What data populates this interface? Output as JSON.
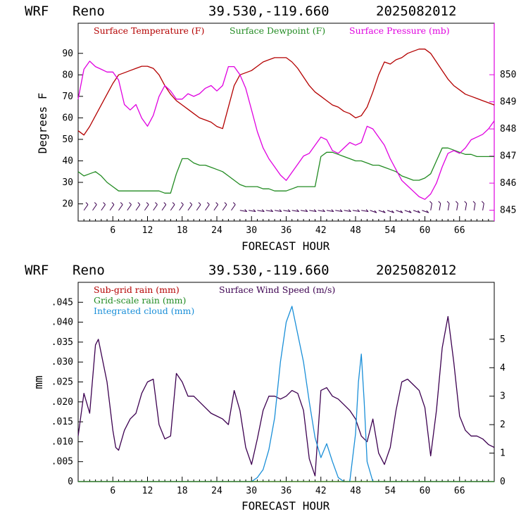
{
  "colors": {
    "temperature": "#b40000",
    "dewpoint": "#228b22",
    "pressure": "#e000e0",
    "wind_barbs": "#3c0050",
    "wind_speed": "#3c0050",
    "subgrid_rain": "#b40000",
    "gridscale_rain": "#228b22",
    "cloud": "#1a8fd8",
    "axis": "#000000"
  },
  "panels": [
    {
      "header": {
        "model": "WRF",
        "station": "Reno",
        "coords": "39.530,-119.660",
        "run": "2025082012"
      },
      "xlabel": "FORECAST HOUR",
      "ylabel_left": "Degrees F",
      "legend": [
        {
          "label": "Surface Temperature (F)",
          "color": "#b40000"
        },
        {
          "label": "Surface Dewpoint (F)",
          "color": "#228b22"
        },
        {
          "label": "Surface Pressure (mb)",
          "color": "#e000e0"
        }
      ],
      "wind_barbs_label": "wind barbs"
    },
    {
      "header": {
        "model": "WRF",
        "station": "Reno",
        "coords": "39.530,-119.660",
        "run": "2025082012"
      },
      "xlabel": "FORECAST HOUR",
      "ylabel_left": "mm",
      "legend": [
        {
          "label": "Sub-grid rain (mm)",
          "color": "#b40000"
        },
        {
          "label": "Surface Wind Speed (m/s)",
          "color": "#3c0050"
        },
        {
          "label": "Grid-scale rain (mm)",
          "color": "#228b22"
        },
        {
          "label": "Integrated cloud (mm)",
          "color": "#1a8fd8"
        }
      ]
    }
  ],
  "chart_data": [
    {
      "type": "line",
      "title": "WRF Reno 39.530,-119.660 2025082012",
      "xlabel": "FORECAST HOUR",
      "ylabel": "Degrees F",
      "xlim": [
        0,
        72
      ],
      "ylim": [
        12,
        104
      ],
      "y2lim": [
        844.6,
        851.9
      ],
      "x_ticks": [
        6,
        12,
        18,
        24,
        30,
        36,
        42,
        48,
        54,
        60,
        66
      ],
      "y_ticks": [
        20,
        30,
        40,
        50,
        60,
        70,
        80,
        90
      ],
      "y2_ticks": [
        845,
        846,
        847,
        848,
        849,
        850
      ],
      "legend_position": "top",
      "series": [
        {
          "name": "Surface Temperature (F)",
          "axis": "left",
          "x": [
            0,
            1,
            2,
            3,
            4,
            5,
            6,
            7,
            8,
            9,
            10,
            11,
            12,
            13,
            14,
            15,
            16,
            17,
            18,
            19,
            20,
            21,
            22,
            23,
            24,
            25,
            26,
            27,
            28,
            29,
            30,
            31,
            32,
            33,
            34,
            35,
            36,
            37,
            38,
            39,
            40,
            41,
            42,
            43,
            44,
            45,
            46,
            47,
            48,
            49,
            50,
            51,
            52,
            53,
            54,
            55,
            56,
            57,
            58,
            59,
            60,
            61,
            62,
            63,
            64,
            65,
            66,
            67,
            68,
            69,
            70,
            71,
            72
          ],
          "values": [
            54,
            52,
            56,
            61,
            66,
            71,
            76,
            80,
            81,
            82,
            83,
            84,
            84,
            83,
            80,
            75,
            71,
            68,
            66,
            64,
            62,
            60,
            59,
            58,
            56,
            55,
            65,
            75,
            80,
            81,
            82,
            84,
            86,
            87,
            88,
            88,
            88,
            86,
            83,
            79,
            75,
            72,
            70,
            68,
            66,
            65,
            63,
            62,
            60,
            61,
            65,
            72,
            80,
            86,
            85,
            87,
            88,
            90,
            91,
            92,
            92,
            90,
            86,
            82,
            78,
            75,
            73,
            71,
            70,
            69,
            68,
            67,
            66
          ]
        },
        {
          "name": "Surface Dewpoint (F)",
          "axis": "left",
          "x": [
            0,
            1,
            2,
            3,
            4,
            5,
            6,
            7,
            8,
            9,
            10,
            11,
            12,
            13,
            14,
            15,
            16,
            17,
            18,
            19,
            20,
            21,
            22,
            23,
            24,
            25,
            26,
            27,
            28,
            29,
            30,
            31,
            32,
            33,
            34,
            35,
            36,
            37,
            38,
            39,
            40,
            41,
            42,
            43,
            44,
            45,
            46,
            47,
            48,
            49,
            50,
            51,
            52,
            53,
            54,
            55,
            56,
            57,
            58,
            59,
            60,
            61,
            62,
            63,
            64,
            65,
            66,
            67,
            68,
            69,
            70,
            71,
            72
          ],
          "values": [
            35,
            33,
            34,
            35,
            33,
            30,
            28,
            26,
            26,
            26,
            26,
            26,
            26,
            26,
            26,
            25,
            25,
            34,
            41,
            41,
            39,
            38,
            38,
            37,
            36,
            35,
            33,
            31,
            29,
            28,
            28,
            28,
            27,
            27,
            26,
            26,
            26,
            27,
            28,
            28,
            28,
            28,
            42,
            44,
            44,
            43,
            42,
            41,
            40,
            40,
            39,
            38,
            38,
            37,
            36,
            35,
            33,
            32,
            31,
            31,
            32,
            34,
            40,
            46,
            46,
            45,
            44,
            43,
            43,
            42,
            42,
            42,
            42
          ]
        },
        {
          "name": "Surface Pressure (mb)",
          "axis": "right",
          "x": [
            0,
            1,
            2,
            3,
            4,
            5,
            6,
            7,
            8,
            9,
            10,
            11,
            12,
            13,
            14,
            15,
            16,
            17,
            18,
            19,
            20,
            21,
            22,
            23,
            24,
            25,
            26,
            27,
            28,
            29,
            30,
            31,
            32,
            33,
            34,
            35,
            36,
            37,
            38,
            39,
            40,
            41,
            42,
            43,
            44,
            45,
            46,
            47,
            48,
            49,
            50,
            51,
            52,
            53,
            54,
            55,
            56,
            57,
            58,
            59,
            60,
            61,
            62,
            63,
            64,
            65,
            66,
            67,
            68,
            69,
            70,
            71,
            72
          ],
          "values": [
            849.1,
            850.2,
            850.5,
            850.3,
            850.2,
            850.1,
            850.1,
            849.8,
            848.9,
            848.7,
            848.9,
            848.4,
            848.1,
            848.5,
            849.2,
            849.6,
            849.4,
            849.1,
            849.1,
            849.3,
            849.2,
            849.3,
            849.5,
            849.6,
            849.4,
            849.6,
            850.3,
            850.3,
            850.0,
            849.5,
            848.7,
            847.9,
            847.3,
            846.9,
            846.6,
            846.3,
            846.1,
            846.4,
            846.7,
            847.0,
            847.1,
            847.4,
            847.7,
            847.6,
            847.2,
            847.1,
            847.3,
            847.5,
            847.4,
            847.5,
            848.1,
            848.0,
            847.7,
            847.4,
            846.9,
            846.5,
            846.1,
            845.9,
            845.7,
            845.5,
            845.4,
            845.6,
            846.0,
            846.6,
            847.1,
            847.2,
            847.1,
            847.3,
            847.6,
            847.7,
            847.8,
            848.0,
            848.3
          ]
        }
      ]
    },
    {
      "type": "line",
      "title": "WRF Reno 39.530,-119.660 2025082012",
      "xlabel": "FORECAST HOUR",
      "ylabel": "mm",
      "xlim": [
        0,
        72
      ],
      "ylim": [
        0,
        0.05
      ],
      "y2lim": [
        0,
        7.0
      ],
      "x_ticks": [
        6,
        12,
        18,
        24,
        30,
        36,
        42,
        48,
        54,
        60,
        66
      ],
      "y_ticks": [
        "0",
        ".005",
        ".010",
        ".015",
        ".020",
        ".025",
        ".030",
        ".035",
        ".040",
        ".045"
      ],
      "y2_ticks": [
        0,
        1,
        2,
        3,
        4,
        5
      ],
      "legend_position": "top-left",
      "series": [
        {
          "name": "Surface Wind Speed (m/s)",
          "axis": "right",
          "x": [
            0,
            1,
            2,
            3,
            3.5,
            4,
            5,
            6,
            6.5,
            7,
            8,
            9,
            10,
            11,
            12,
            13,
            14,
            15,
            16,
            17,
            18,
            19,
            20,
            21,
            22,
            23,
            24,
            25,
            26,
            27,
            28,
            29,
            30,
            31,
            32,
            33,
            34,
            35,
            36,
            37,
            38,
            39,
            40,
            41,
            42,
            43,
            44,
            45,
            46,
            47,
            48,
            49,
            50,
            51,
            52,
            53,
            54,
            55,
            56,
            57,
            58,
            59,
            60,
            61,
            62,
            63,
            64,
            65,
            66,
            67,
            68,
            69,
            70,
            71,
            72
          ],
          "values": [
            1.6,
            3.1,
            2.4,
            4.8,
            5.0,
            4.5,
            3.5,
            1.8,
            1.2,
            1.1,
            1.8,
            2.2,
            2.4,
            3.1,
            3.5,
            3.6,
            2.0,
            1.5,
            1.6,
            3.8,
            3.5,
            3.0,
            3.0,
            2.8,
            2.6,
            2.4,
            2.3,
            2.2,
            2.0,
            3.2,
            2.5,
            1.2,
            0.6,
            1.5,
            2.5,
            3.0,
            3.0,
            2.9,
            3.0,
            3.2,
            3.1,
            2.5,
            0.8,
            0.2,
            3.2,
            3.3,
            3.0,
            2.9,
            2.7,
            2.5,
            2.2,
            1.6,
            1.4,
            2.2,
            1.0,
            0.6,
            1.2,
            2.5,
            3.5,
            3.6,
            3.4,
            3.2,
            2.6,
            0.9,
            2.5,
            4.7,
            5.8,
            4.2,
            2.3,
            1.8,
            1.6,
            1.6,
            1.5,
            1.3,
            1.2
          ]
        },
        {
          "name": "Integrated cloud (mm)",
          "axis": "left",
          "x": [
            0,
            28,
            30,
            31,
            32,
            33,
            34,
            35,
            36,
            37,
            38,
            39,
            40,
            41,
            42,
            43,
            44,
            45,
            46,
            47,
            48,
            48.5,
            49,
            49.5,
            50,
            51,
            52,
            72
          ],
          "values": [
            0,
            0,
            0,
            0.001,
            0.003,
            0.008,
            0.016,
            0.03,
            0.04,
            0.044,
            0.037,
            0.03,
            0.02,
            0.011,
            0.006,
            0.0095,
            0.005,
            0.001,
            0,
            0,
            0.012,
            0.025,
            0.032,
            0.02,
            0.005,
            0,
            0,
            0
          ]
        },
        {
          "name": "Sub-grid rain (mm)",
          "axis": "left",
          "x": [
            0,
            72
          ],
          "values": [
            0,
            0
          ]
        },
        {
          "name": "Grid-scale rain (mm)",
          "axis": "left",
          "x": [
            0,
            72
          ],
          "values": [
            0,
            0
          ]
        }
      ]
    }
  ]
}
